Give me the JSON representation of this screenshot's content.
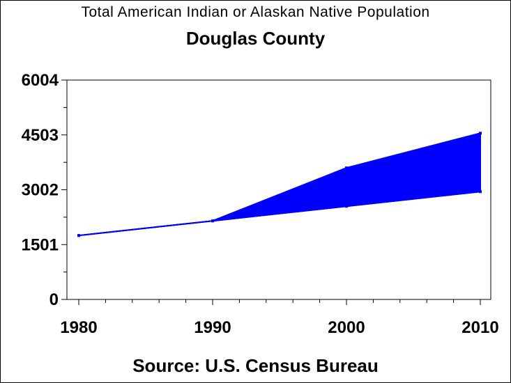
{
  "title": "Total American Indian or Alaskan Native Population",
  "subtitle": "Douglas County",
  "footnote": "Source: U.S. Census Bureau",
  "colors": {
    "fill": "#0000ff",
    "axis": "#000000",
    "background": "#ffffff"
  },
  "chart_data": {
    "type": "area",
    "x": [
      1980,
      1990,
      2000,
      2010
    ],
    "series": [
      {
        "values": [
          1750,
          2150,
          2550,
          2950
        ]
      },
      {
        "values": [
          1750,
          2150,
          3600,
          4550
        ]
      }
    ],
    "xlim": [
      1980,
      2010
    ],
    "ylim": [
      0,
      6004
    ],
    "yticks": [
      "0",
      "1501",
      "3002",
      "4503",
      "6004"
    ],
    "xticks": [
      "1980",
      "1990",
      "2000",
      "2010"
    ],
    "grid": false,
    "legend": "none"
  }
}
